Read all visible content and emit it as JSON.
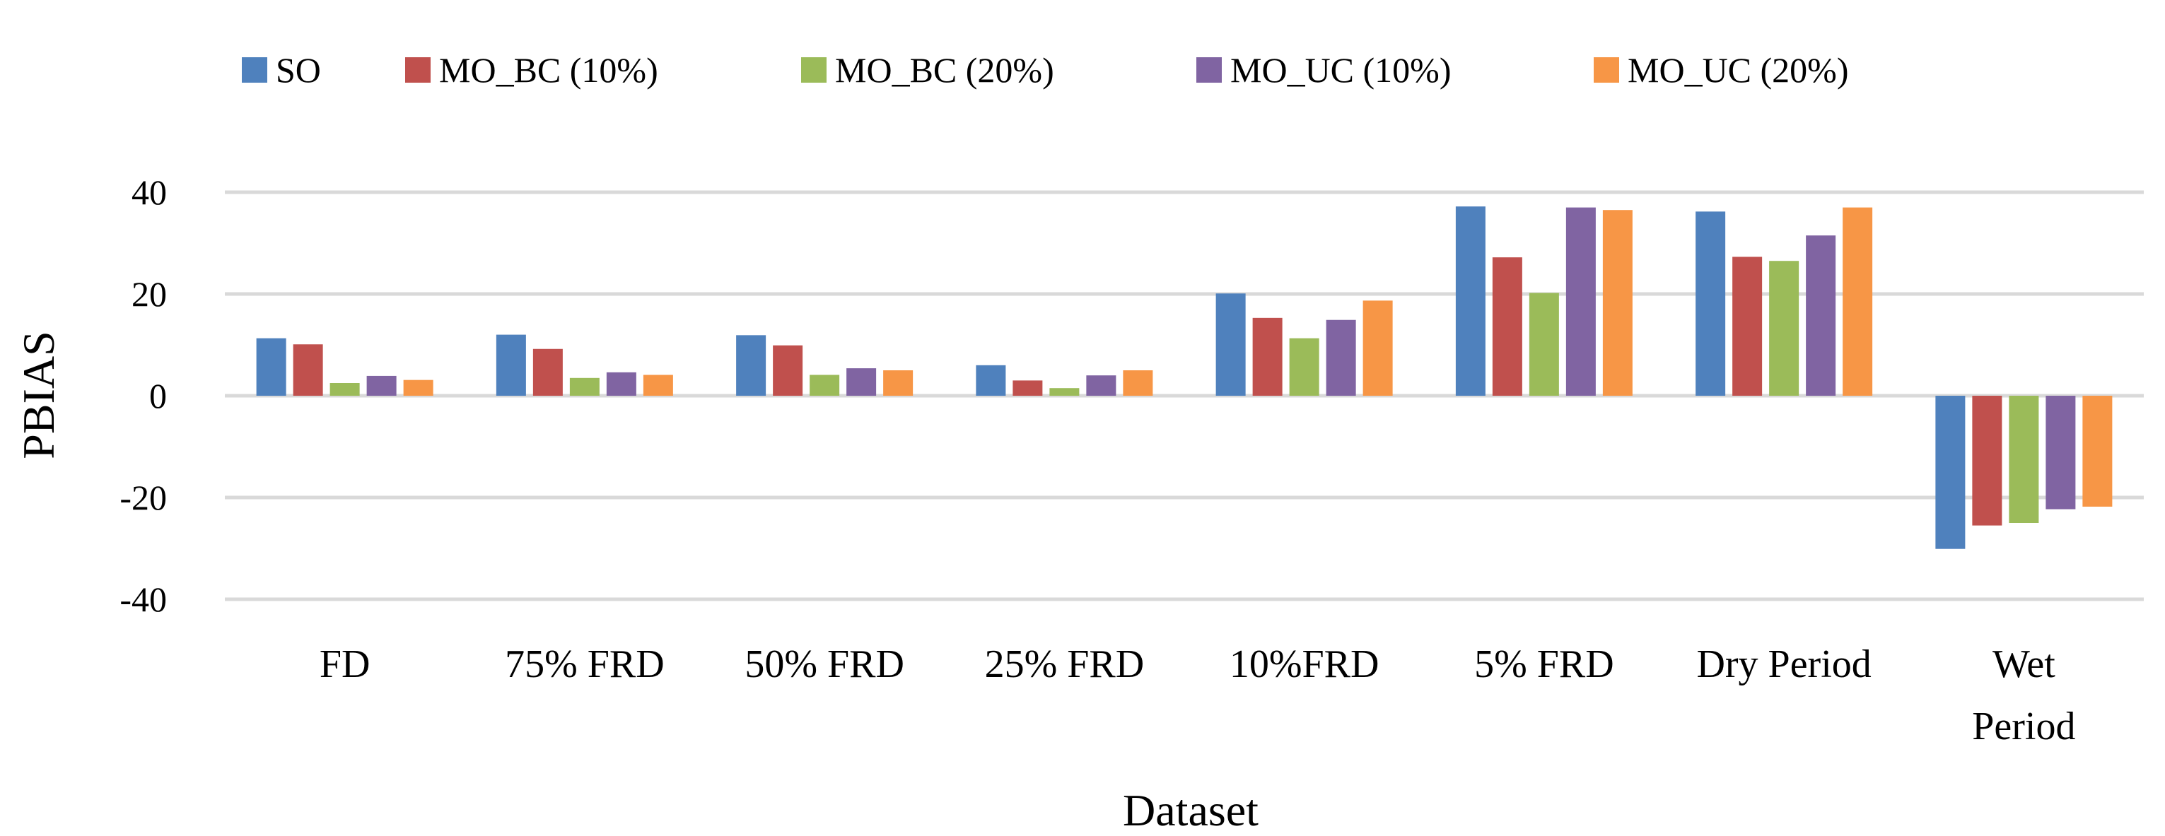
{
  "chart_data": {
    "type": "bar",
    "title": "",
    "xlabel": "Dataset",
    "ylabel": "PBIAS",
    "ylim": [
      -40,
      40
    ],
    "yticks": [
      -40,
      -20,
      0,
      20,
      40
    ],
    "ytick_labels": [
      "-40",
      "-20",
      "0",
      "20",
      "40"
    ],
    "grid": true,
    "legend_position": "top",
    "categories": [
      "FD",
      "75% FRD",
      "50% FRD",
      "25% FRD",
      "10%FRD",
      "5% FRD",
      "Dry Period",
      "Wet Period"
    ],
    "series": [
      {
        "name": "SO",
        "color": "#4F81BD",
        "values": [
          11.3,
          12.0,
          11.9,
          6.0,
          20.1,
          37.2,
          36.2,
          -30.1
        ]
      },
      {
        "name": "MO_BC (10%)",
        "color": "#C0504D",
        "values": [
          10.1,
          9.2,
          9.9,
          3.0,
          15.3,
          27.2,
          27.3,
          -25.5
        ]
      },
      {
        "name": "MO_BC (20%)",
        "color": "#9BBB59",
        "values": [
          2.5,
          3.5,
          4.1,
          1.5,
          11.3,
          20.2,
          26.5,
          -25.0
        ]
      },
      {
        "name": "MO_UC (10%)",
        "color": "#8064A2",
        "values": [
          3.9,
          4.6,
          5.4,
          4.0,
          14.9,
          37.0,
          31.5,
          -22.3
        ]
      },
      {
        "name": "MO_UC (20%)",
        "color": "#F79646",
        "values": [
          3.1,
          4.1,
          5.0,
          5.0,
          18.7,
          36.5,
          37.0,
          -21.8
        ]
      }
    ]
  }
}
